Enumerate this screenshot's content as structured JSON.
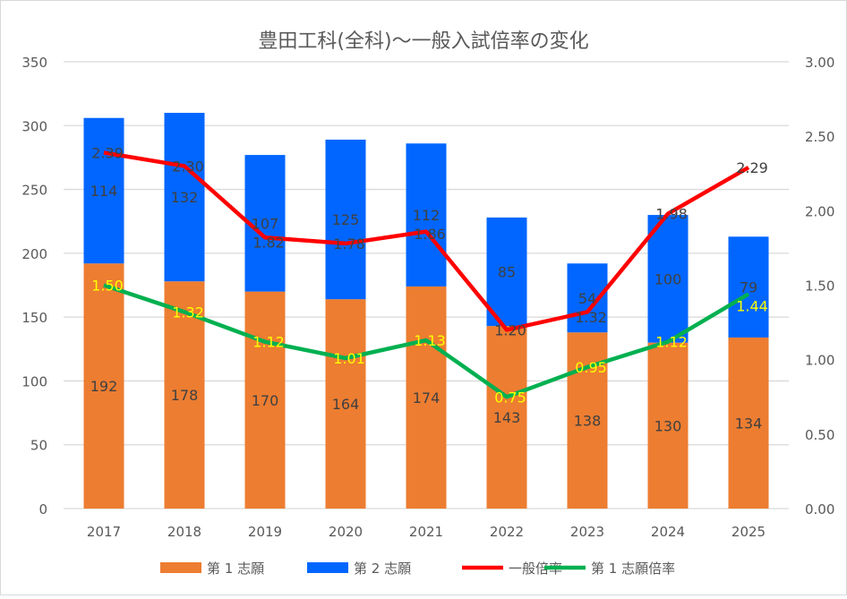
{
  "chart_data": {
    "type": "bar",
    "title": "豊田工科(全科)～一般入試倍率の変化",
    "categories": [
      "2017",
      "2018",
      "2019",
      "2020",
      "2021",
      "2022",
      "2023",
      "2024",
      "2025"
    ],
    "ylim": [
      0,
      350
    ],
    "y_ticks": [
      0,
      50,
      100,
      150,
      200,
      250,
      300,
      350
    ],
    "y2lim": [
      0,
      3
    ],
    "y2_ticks": [
      "0.00",
      "0.50",
      "1.00",
      "1.50",
      "2.00",
      "2.50",
      "3.00"
    ],
    "grid": true,
    "legend_position": "bottom",
    "series": [
      {
        "name": "第 1 志願",
        "kind": "bar",
        "axis": "left",
        "color": "#ed7d31",
        "values": [
          192,
          178,
          170,
          164,
          174,
          143,
          138,
          130,
          134
        ]
      },
      {
        "name": "第 2 志願",
        "kind": "bar",
        "axis": "left",
        "color": "#0066ff",
        "values": [
          114,
          132,
          107,
          125,
          112,
          85,
          54,
          100,
          79
        ]
      },
      {
        "name": "一般倍率",
        "kind": "line",
        "axis": "right",
        "color": "#ff0000",
        "label_color": "#404040",
        "values": [
          2.39,
          2.3,
          1.82,
          1.78,
          1.86,
          1.2,
          1.32,
          1.98,
          2.29
        ]
      },
      {
        "name": "第 1 志願倍率",
        "kind": "line",
        "axis": "right",
        "color": "#00b050",
        "label_color": "#ffff00",
        "values": [
          1.5,
          1.32,
          1.12,
          1.01,
          1.13,
          0.75,
          0.95,
          1.12,
          1.44
        ]
      }
    ]
  }
}
